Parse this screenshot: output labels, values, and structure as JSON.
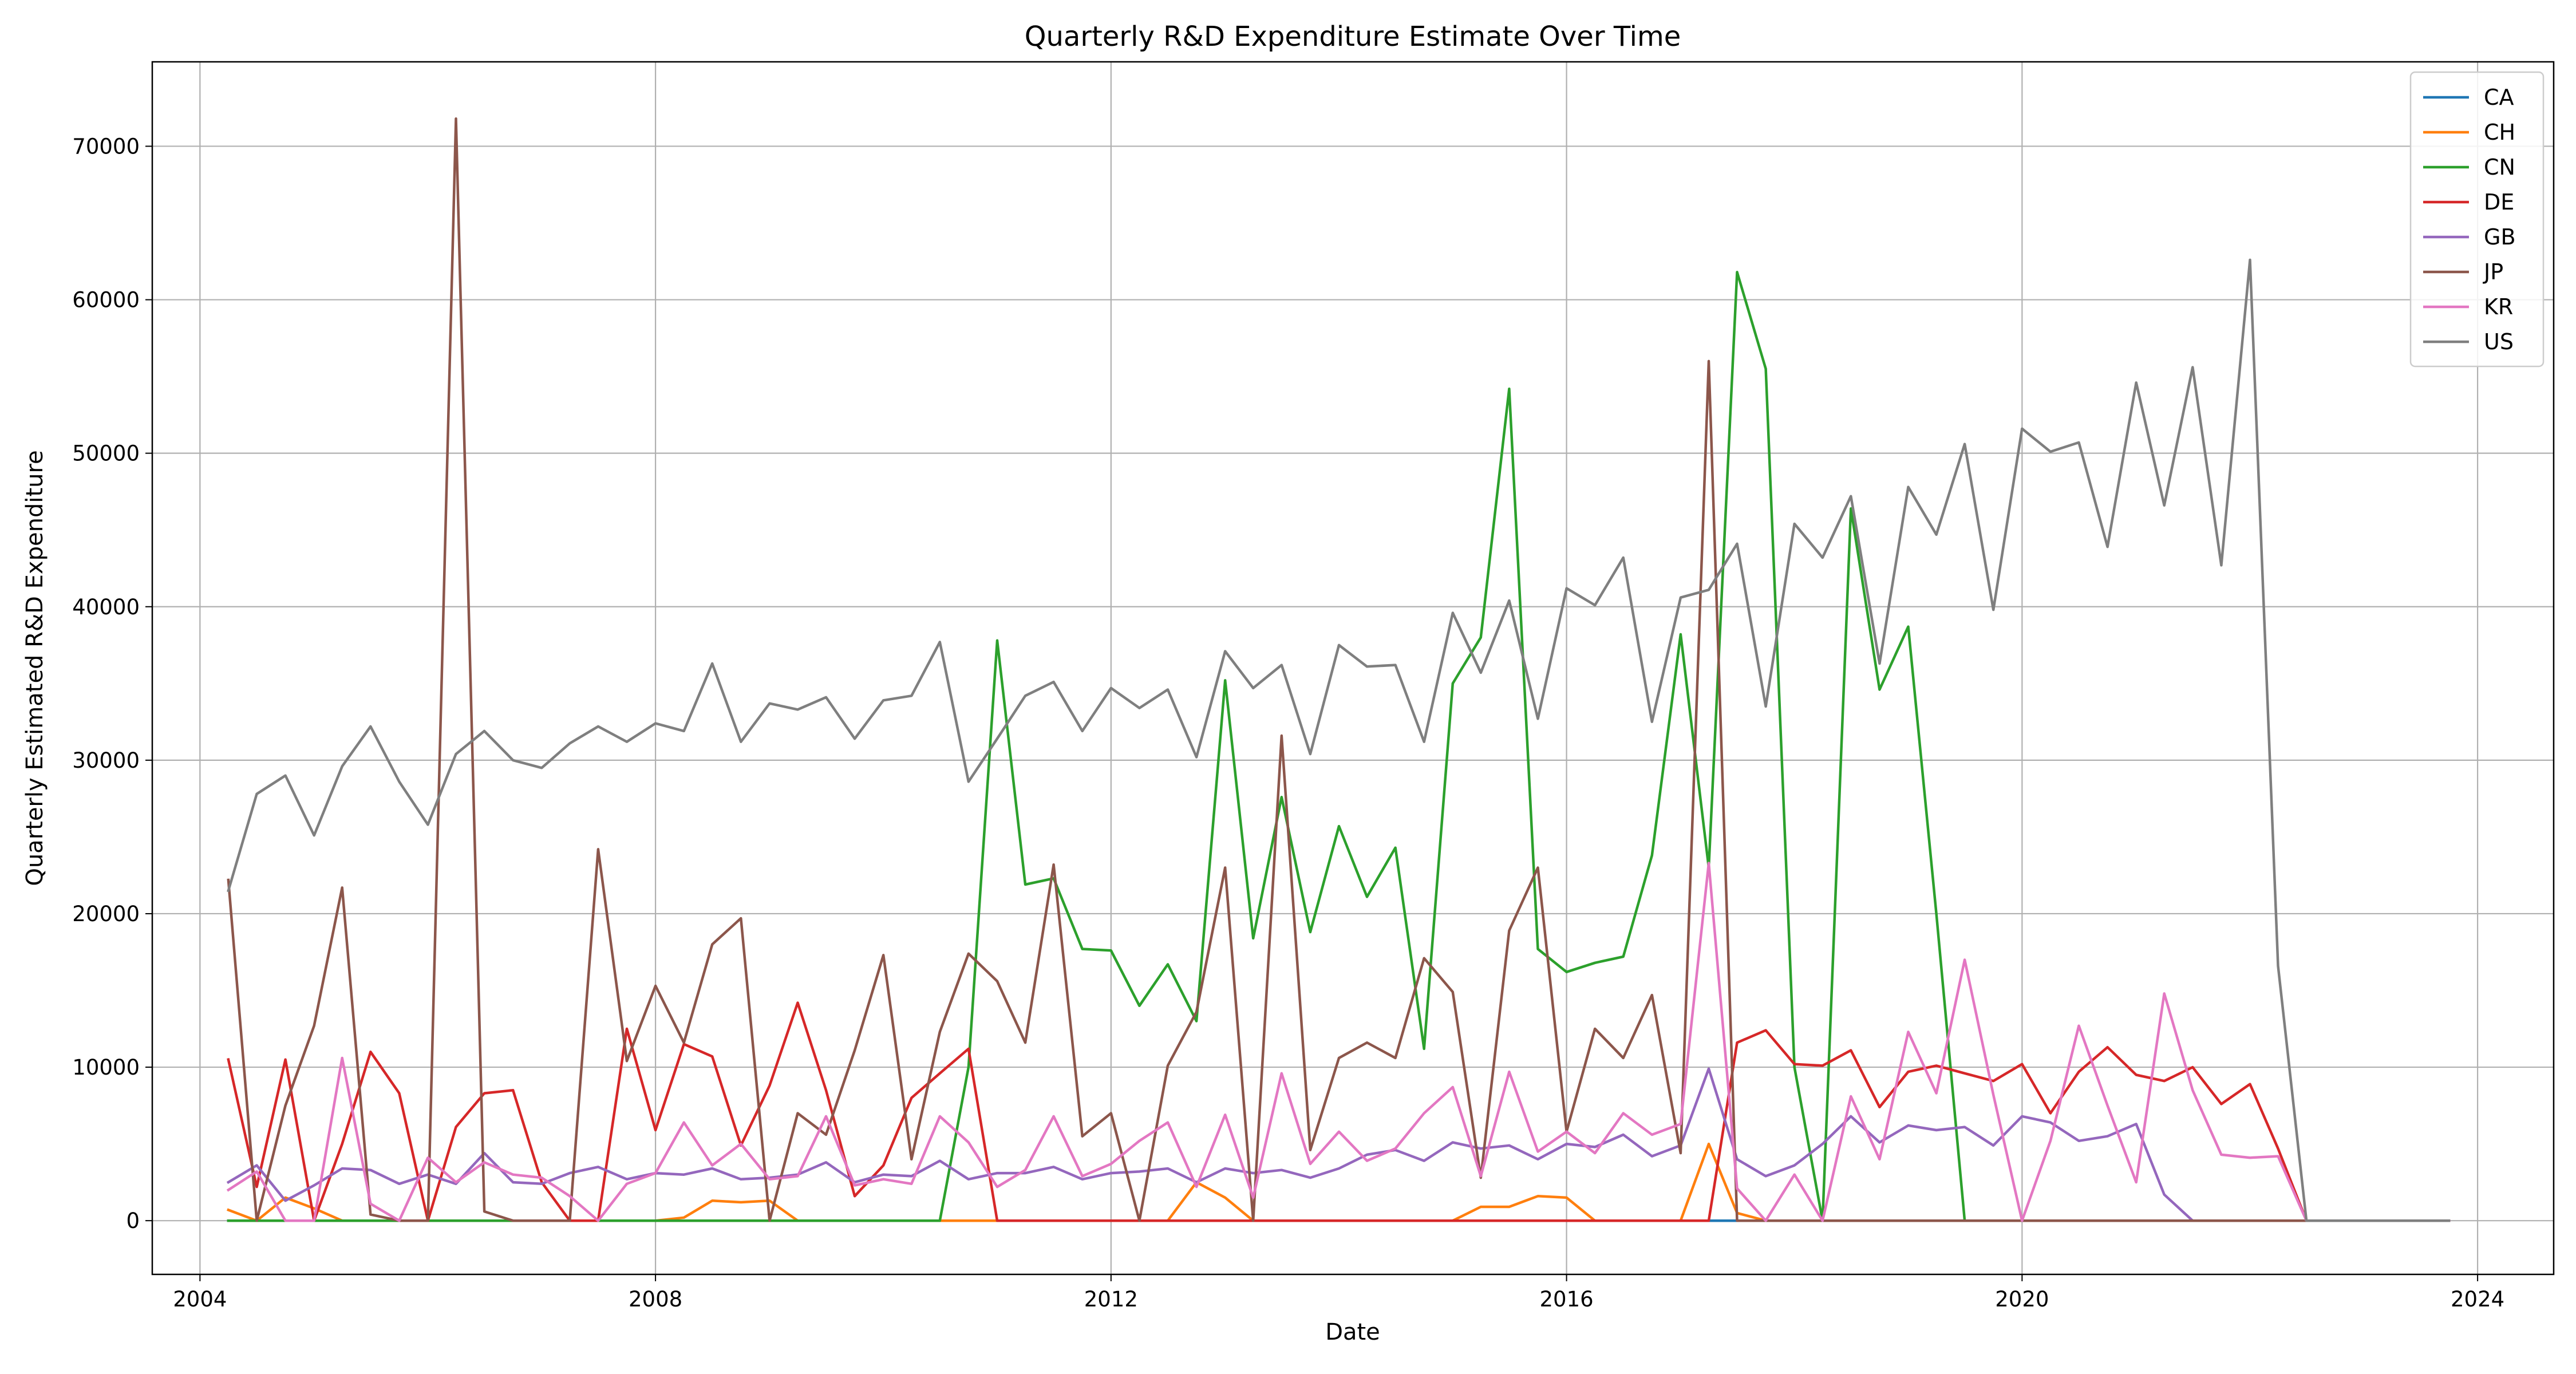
{
  "chart_data": {
    "type": "line",
    "title": "Quarterly R&D Expenditure Estimate Over Time",
    "xlabel": "Date",
    "ylabel": "Quarterly Estimated R&D Expenditure",
    "x_ticks": [
      "2004",
      "2008",
      "2012",
      "2016",
      "2020",
      "2024"
    ],
    "y_ticks": [
      "0",
      "10000",
      "20000",
      "30000",
      "40000",
      "50000",
      "60000",
      "70000"
    ],
    "xlim": [
      "2003-08-01",
      "2024-09-01"
    ],
    "ylim": [
      -3500,
      75500
    ],
    "grid": true,
    "legend_position": "top-right",
    "x": [
      "2004-04-01",
      "2004-07-01",
      "2004-10-01",
      "2005-01-01",
      "2005-04-01",
      "2005-07-01",
      "2005-10-01",
      "2006-01-01",
      "2006-04-01",
      "2006-07-01",
      "2006-10-01",
      "2007-01-01",
      "2007-04-01",
      "2007-07-01",
      "2007-10-01",
      "2008-01-01",
      "2008-04-01",
      "2008-07-01",
      "2008-10-01",
      "2009-01-01",
      "2009-04-01",
      "2009-07-01",
      "2009-10-01",
      "2010-01-01",
      "2010-04-01",
      "2010-07-01",
      "2010-10-01",
      "2011-01-01",
      "2011-04-01",
      "2011-07-01",
      "2011-10-01",
      "2012-01-01",
      "2012-04-01",
      "2012-07-01",
      "2012-10-01",
      "2013-01-01",
      "2013-04-01",
      "2013-07-01",
      "2013-10-01",
      "2014-01-01",
      "2014-04-01",
      "2014-07-01",
      "2014-10-01",
      "2015-01-01",
      "2015-04-01",
      "2015-07-01",
      "2015-10-01",
      "2016-01-01",
      "2016-04-01",
      "2016-07-01",
      "2016-10-01",
      "2017-01-01",
      "2017-04-01",
      "2017-07-01",
      "2017-10-01",
      "2018-01-01",
      "2018-04-01",
      "2018-07-01",
      "2018-10-01",
      "2019-01-01",
      "2019-04-01",
      "2019-07-01",
      "2019-10-01",
      "2020-01-01",
      "2020-04-01",
      "2020-07-01",
      "2020-10-01",
      "2021-01-01",
      "2021-04-01",
      "2021-07-01",
      "2021-10-01",
      "2022-01-01",
      "2022-04-01",
      "2022-07-01",
      "2022-10-01",
      "2023-01-01",
      "2023-04-01",
      "2023-07-01",
      "2023-10-01"
    ],
    "series": [
      {
        "name": "CA",
        "color": "#1f77b4",
        "values": [
          0,
          0,
          0,
          0,
          0,
          0,
          0,
          0,
          0,
          0,
          0,
          0,
          0,
          0,
          0,
          0,
          0,
          0,
          0,
          0,
          0,
          0,
          0,
          0,
          0,
          0,
          0,
          0,
          0,
          0,
          0,
          0,
          0,
          0,
          0,
          0,
          0,
          0,
          0,
          0,
          0,
          0,
          0,
          0,
          0,
          0,
          0,
          0,
          0,
          0,
          0,
          0,
          0,
          0,
          0,
          0,
          0,
          0,
          0,
          0,
          0,
          0,
          0,
          0,
          0,
          0,
          0,
          0,
          0,
          0,
          0,
          0,
          0,
          0,
          0,
          0,
          0,
          0,
          0
        ]
      },
      {
        "name": "CH",
        "color": "#ff7f0e",
        "values": [
          700,
          0,
          1500,
          800,
          0,
          0,
          0,
          0,
          0,
          0,
          0,
          0,
          0,
          0,
          0,
          0,
          200,
          1300,
          1200,
          1300,
          0,
          0,
          0,
          0,
          0,
          0,
          0,
          0,
          0,
          0,
          0,
          0,
          0,
          0,
          2500,
          1500,
          0,
          0,
          0,
          0,
          0,
          0,
          0,
          0,
          900,
          900,
          1600,
          1500,
          0,
          0,
          0,
          0,
          5000,
          500,
          0,
          0,
          0,
          0,
          0,
          0,
          0,
          0,
          0,
          0,
          0,
          0,
          0,
          0,
          0,
          0,
          0,
          0,
          0,
          0,
          0,
          0,
          0,
          0,
          0
        ]
      },
      {
        "name": "CN",
        "color": "#2ca02c",
        "values": [
          0,
          0,
          0,
          0,
          0,
          0,
          0,
          0,
          0,
          0,
          0,
          0,
          0,
          0,
          0,
          0,
          0,
          0,
          0,
          0,
          0,
          0,
          0,
          0,
          0,
          0,
          10000,
          37800,
          21900,
          22300,
          17700,
          17600,
          14000,
          16700,
          13000,
          35200,
          18400,
          27600,
          18800,
          25700,
          21100,
          24300,
          11200,
          35000,
          38000,
          54200,
          17700,
          16200,
          16800,
          17200,
          23800,
          38200,
          23000,
          61800,
          55500,
          10000,
          0,
          46400,
          34600,
          38700,
          20000,
          0,
          0,
          0,
          0,
          0,
          0,
          0,
          0,
          0,
          0,
          0,
          0,
          0,
          0,
          0,
          0,
          0,
          0
        ]
      },
      {
        "name": "DE",
        "color": "#d62728",
        "values": [
          10500,
          2200,
          10500,
          0,
          5000,
          11000,
          8300,
          0,
          6100,
          8300,
          8500,
          2500,
          0,
          0,
          12500,
          5900,
          11500,
          10700,
          4900,
          8800,
          14200,
          8500,
          1600,
          3600,
          8000,
          9600,
          11200,
          0,
          0,
          0,
          0,
          0,
          0,
          0,
          0,
          0,
          0,
          0,
          0,
          0,
          0,
          0,
          0,
          0,
          0,
          0,
          0,
          0,
          0,
          0,
          0,
          0,
          0,
          11600,
          12400,
          10200,
          10100,
          11100,
          7400,
          9700,
          10100,
          9600,
          9100,
          10200,
          7000,
          9700,
          11300,
          9500,
          9100,
          10000,
          7600,
          8900,
          4700,
          0,
          0,
          0,
          0,
          0,
          0
        ]
      },
      {
        "name": "GB",
        "color": "#9467bd",
        "values": [
          2500,
          3600,
          1300,
          2300,
          3400,
          3300,
          2400,
          3000,
          2400,
          4400,
          2500,
          2400,
          3100,
          3500,
          2700,
          3100,
          3000,
          3400,
          2700,
          2800,
          3000,
          3800,
          2500,
          3000,
          2900,
          3900,
          2700,
          3100,
          3100,
          3500,
          2700,
          3100,
          3200,
          3400,
          2500,
          3400,
          3100,
          3300,
          2800,
          3400,
          4300,
          4600,
          3900,
          5100,
          4700,
          4900,
          4000,
          5000,
          4800,
          5600,
          4200,
          4900,
          9900,
          4000,
          2900,
          3600,
          5000,
          6800,
          5100,
          6200,
          5900,
          6100,
          4900,
          6800,
          6400,
          5200,
          5500,
          6300,
          1700,
          0,
          0,
          0,
          0,
          0,
          0,
          0,
          0,
          0,
          0
        ]
      },
      {
        "name": "JP",
        "color": "#8c564b",
        "values": [
          22200,
          0,
          7500,
          12700,
          21700,
          400,
          0,
          0,
          71800,
          600,
          0,
          0,
          0,
          24200,
          10400,
          15300,
          11600,
          18000,
          19700,
          0,
          7000,
          5600,
          11100,
          17300,
          4000,
          12300,
          17400,
          15600,
          11600,
          23200,
          5500,
          7000,
          0,
          10100,
          13600,
          23000,
          0,
          31600,
          4600,
          10600,
          11600,
          10600,
          17100,
          14900,
          2800,
          18900,
          23000,
          5800,
          12500,
          10600,
          14700,
          4400,
          56000,
          0,
          0,
          0,
          0,
          0,
          0,
          0,
          0,
          0,
          0,
          0,
          0,
          0,
          0,
          0,
          0,
          0,
          0,
          0,
          0,
          0,
          0,
          0,
          0,
          0,
          0
        ]
      },
      {
        "name": "KR",
        "color": "#e377c2",
        "values": [
          2000,
          3200,
          0,
          0,
          10600,
          1100,
          0,
          4100,
          2500,
          3800,
          3000,
          2800,
          1600,
          0,
          2400,
          3100,
          6400,
          3600,
          5000,
          2700,
          2900,
          6800,
          2300,
          2700,
          2400,
          6800,
          5100,
          2200,
          3300,
          6800,
          2900,
          3700,
          5200,
          6400,
          2200,
          6900,
          1500,
          9600,
          3700,
          5800,
          3900,
          4700,
          7000,
          8700,
          2900,
          9700,
          4500,
          5800,
          4400,
          7000,
          5600,
          6300,
          23300,
          2100,
          0,
          3000,
          0,
          8100,
          4000,
          12300,
          8300,
          17000,
          8200,
          0,
          5200,
          12700,
          7500,
          2500,
          14800,
          8500,
          4300,
          4100,
          4200,
          0,
          0,
          0,
          0,
          0,
          0
        ]
      },
      {
        "name": "US",
        "color": "#7f7f7f",
        "values": [
          21500,
          27800,
          29000,
          25100,
          29600,
          32200,
          28600,
          25800,
          30400,
          31900,
          30000,
          29500,
          31100,
          32200,
          31200,
          32400,
          31900,
          36300,
          31200,
          33700,
          33300,
          34100,
          31400,
          33900,
          34200,
          37700,
          28600,
          31400,
          34200,
          35100,
          31900,
          34700,
          33400,
          34600,
          30200,
          37100,
          34700,
          36200,
          30400,
          37500,
          36100,
          36200,
          31200,
          39600,
          35700,
          40400,
          32700,
          41200,
          40100,
          43200,
          32500,
          40600,
          41100,
          44100,
          33500,
          45400,
          43200,
          47200,
          36300,
          47800,
          44700,
          50600,
          39800,
          51600,
          50100,
          50700,
          43900,
          54600,
          46600,
          55600,
          42700,
          62600,
          16600,
          0,
          0,
          0,
          0,
          0,
          0
        ]
      }
    ]
  }
}
